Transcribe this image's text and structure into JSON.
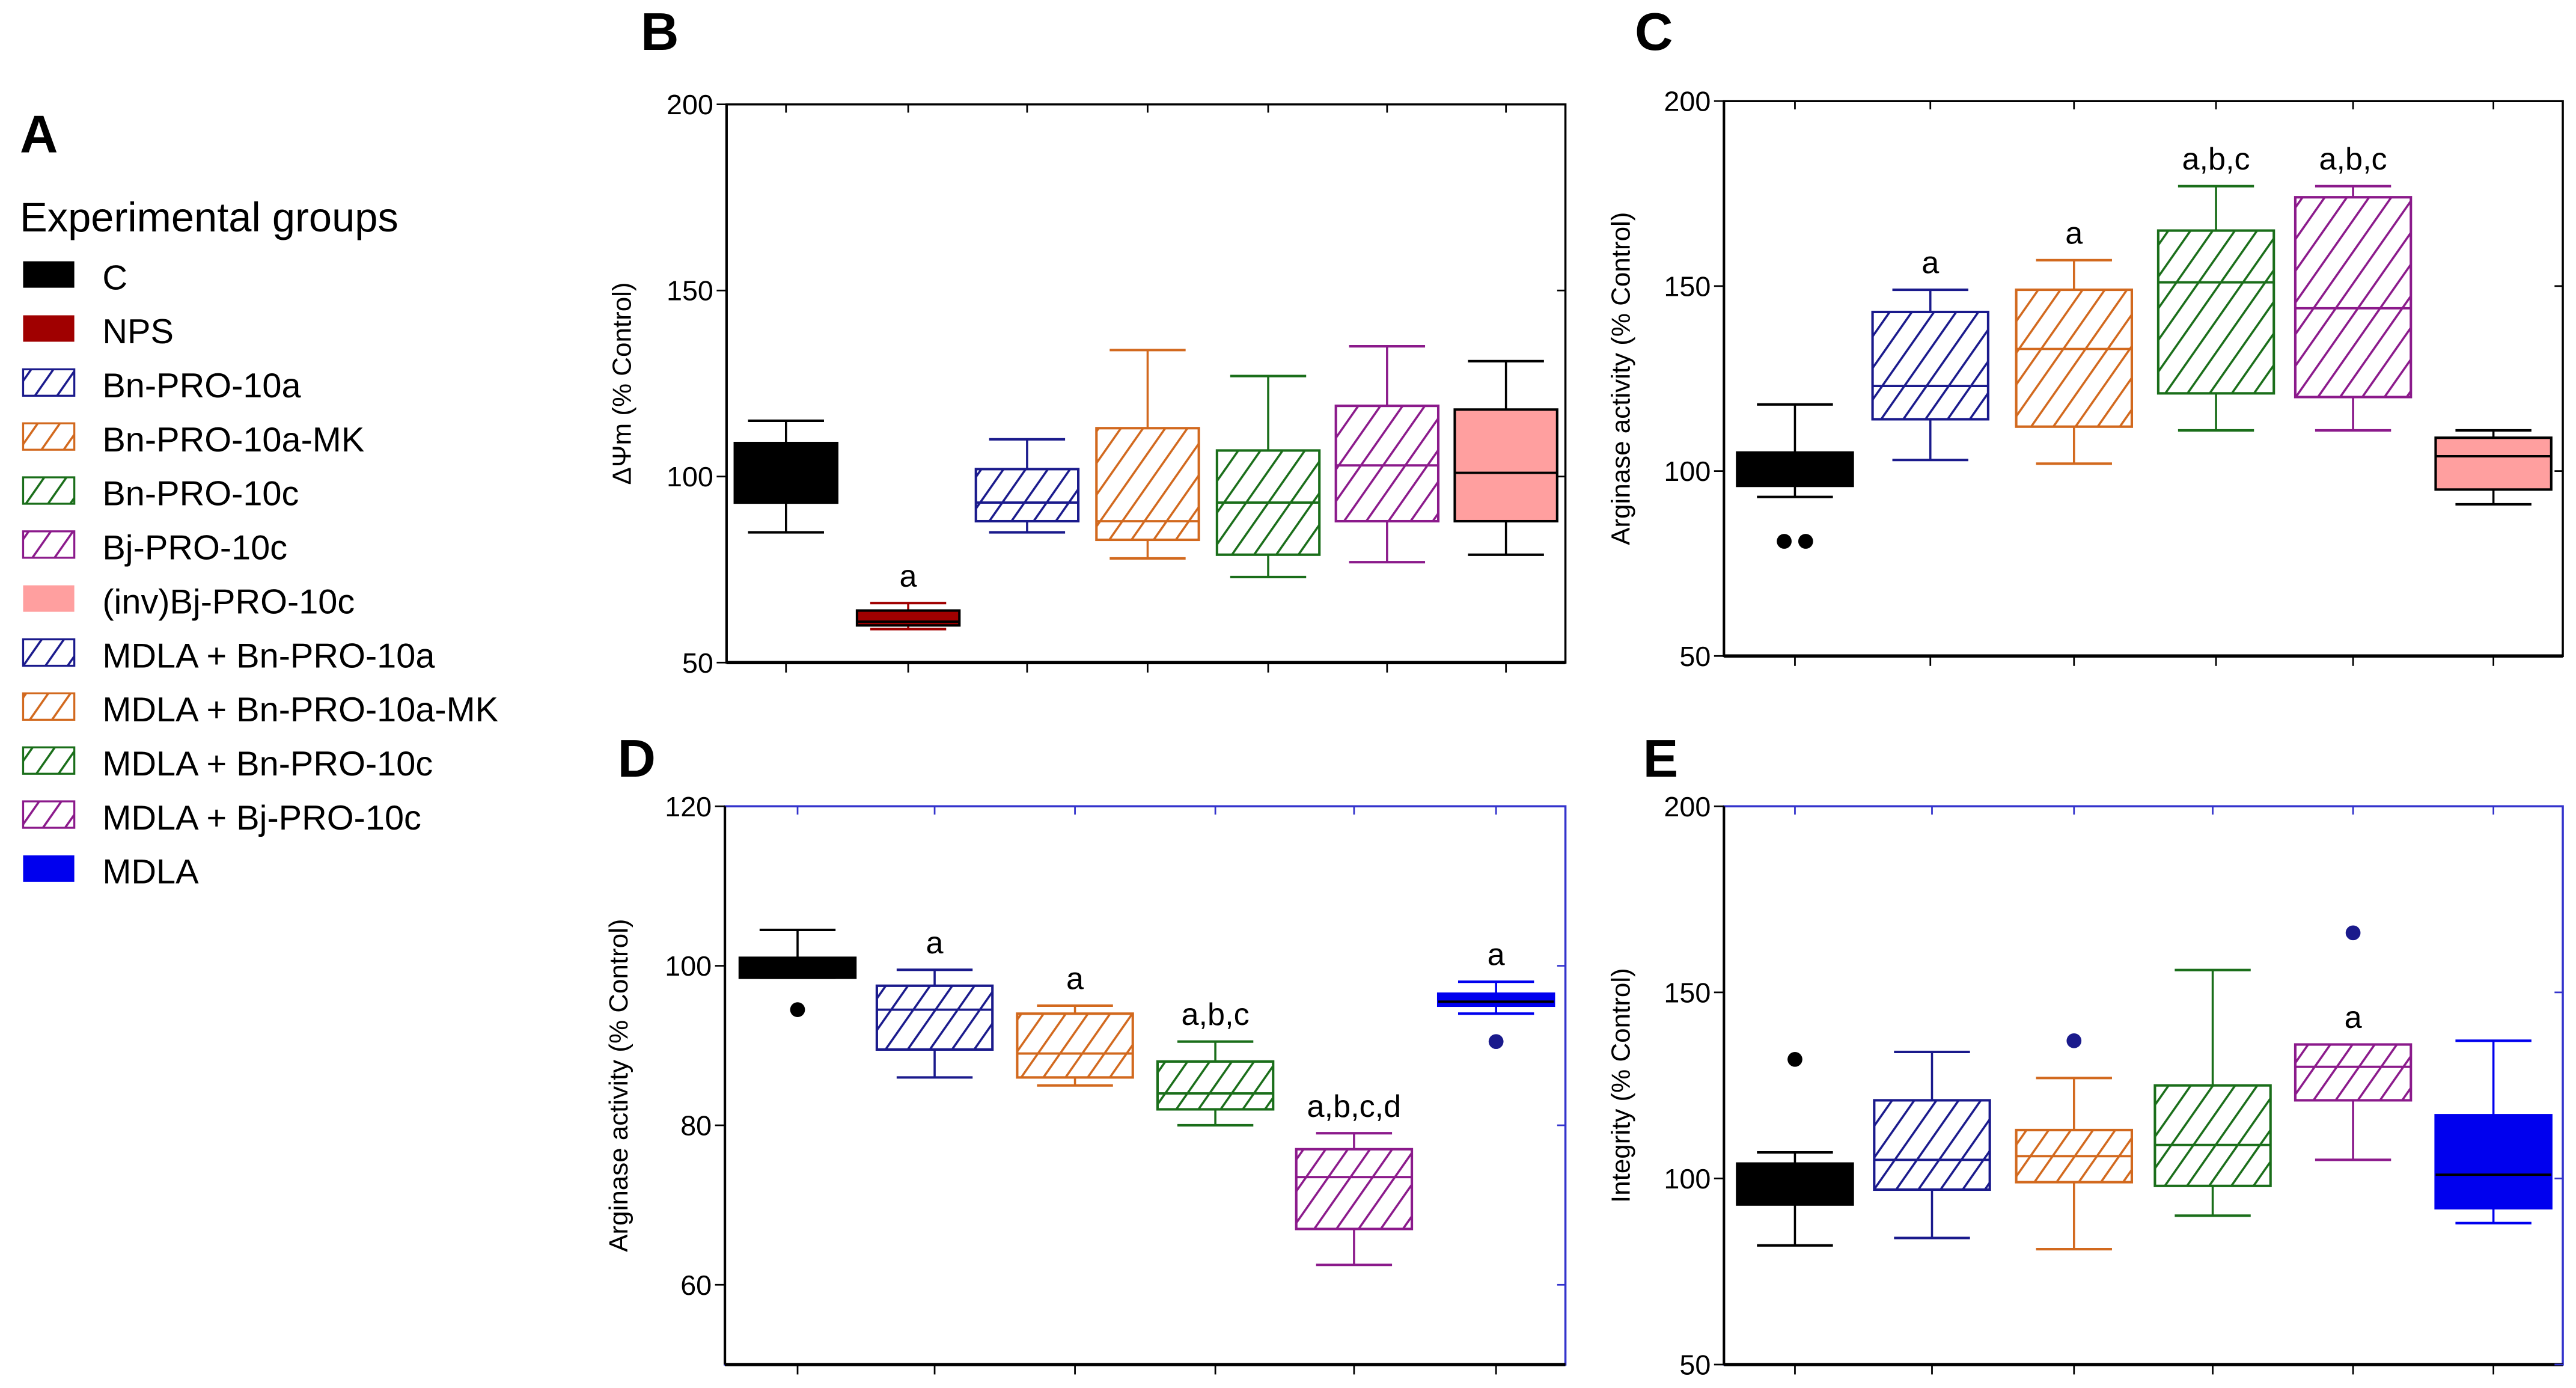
{
  "legend": {
    "panel_letter": "A",
    "title": "Experimental groups",
    "items": [
      {
        "label": "C",
        "color": "#000000",
        "style": "solid"
      },
      {
        "label": "NPS",
        "color": "#a00000",
        "style": "solid"
      },
      {
        "label": "Bn-PRO-10a",
        "color": "#1a1a8c",
        "style": "hatch"
      },
      {
        "label": "Bn-PRO-10a-MK",
        "color": "#d2691e",
        "style": "hatch"
      },
      {
        "label": "Bn-PRO-10c",
        "color": "#1a6e1a",
        "style": "hatch"
      },
      {
        "label": "Bj-PRO-10c",
        "color": "#8b1a8b",
        "style": "hatch"
      },
      {
        "label": "(inv)Bj-PRO-10c",
        "color": "#ff9f9f",
        "style": "solid"
      },
      {
        "label": "MDLA + Bn-PRO-10a",
        "color": "#1a1a8c",
        "style": "hatch"
      },
      {
        "label": "MDLA + Bn-PRO-10a-MK",
        "color": "#d2691e",
        "style": "hatch"
      },
      {
        "label": "MDLA + Bn-PRO-10c",
        "color": "#1a6e1a",
        "style": "hatch"
      },
      {
        "label": "MDLA + Bj-PRO-10c",
        "color": "#8b1a8b",
        "style": "hatch"
      },
      {
        "label": "MDLA",
        "color": "#0000ee",
        "style": "solid"
      }
    ]
  },
  "chart_data": [
    {
      "panel": "B",
      "type": "box",
      "ylabel": "ΔΨm (% Control)",
      "ylim": [
        50,
        200
      ],
      "yticks": [
        50,
        100,
        150,
        200
      ],
      "frame_color": "#000000",
      "groups": [
        {
          "name": "C",
          "min": 85,
          "q1": 93,
          "median": 93,
          "q3": 109,
          "max": 115,
          "outliers": [],
          "annotation": ""
        },
        {
          "name": "NPS",
          "min": 59,
          "q1": 60,
          "median": 61,
          "q3": 64,
          "max": 66,
          "outliers": [],
          "annotation": "a"
        },
        {
          "name": "Bn-PRO-10a",
          "min": 85,
          "q1": 88,
          "median": 93,
          "q3": 102,
          "max": 110,
          "outliers": [],
          "annotation": ""
        },
        {
          "name": "Bn-PRO-10a-MK",
          "min": 78,
          "q1": 83,
          "median": 88,
          "q3": 113,
          "max": 134,
          "outliers": [],
          "annotation": ""
        },
        {
          "name": "Bn-PRO-10c",
          "min": 73,
          "q1": 79,
          "median": 93,
          "q3": 107,
          "max": 127,
          "outliers": [],
          "annotation": ""
        },
        {
          "name": "Bj-PRO-10c",
          "min": 77,
          "q1": 88,
          "median": 103,
          "q3": 119,
          "max": 135,
          "outliers": [],
          "annotation": ""
        },
        {
          "name": "(inv)Bj-PRO-10c",
          "min": 79,
          "q1": 88,
          "median": 101,
          "q3": 118,
          "max": 131,
          "outliers": [],
          "annotation": ""
        }
      ]
    },
    {
      "panel": "C",
      "type": "box",
      "ylabel": "Arginase activity (% Control)",
      "ylim": [
        50,
        200
      ],
      "yticks": [
        50,
        100,
        150,
        200
      ],
      "frame_color": "#000000",
      "groups": [
        {
          "name": "C",
          "min": 93,
          "q1": 96,
          "median": 100,
          "q3": 105,
          "max": 118,
          "outliers": [
            81,
            81
          ],
          "annotation": ""
        },
        {
          "name": "Bn-PRO-10a",
          "min": 103,
          "q1": 114,
          "median": 123,
          "q3": 143,
          "max": 149,
          "outliers": [],
          "annotation": "a"
        },
        {
          "name": "Bn-PRO-10a-MK",
          "min": 102,
          "q1": 112,
          "median": 133,
          "q3": 149,
          "max": 157,
          "outliers": [],
          "annotation": "a"
        },
        {
          "name": "Bn-PRO-10c",
          "min": 111,
          "q1": 121,
          "median": 151,
          "q3": 165,
          "max": 177,
          "outliers": [],
          "annotation": "a,b,c"
        },
        {
          "name": "Bj-PRO-10c",
          "min": 111,
          "q1": 120,
          "median": 144,
          "q3": 174,
          "max": 177,
          "outliers": [],
          "annotation": "a,b,c"
        },
        {
          "name": "(inv)Bj-PRO-10c",
          "min": 91,
          "q1": 95,
          "median": 104,
          "q3": 109,
          "max": 111,
          "outliers": [],
          "annotation": ""
        }
      ]
    },
    {
      "panel": "D",
      "type": "box",
      "ylabel": "Arginase activity (% Control)",
      "ylim": [
        50,
        120
      ],
      "yticks": [
        60,
        80,
        100,
        120
      ],
      "frame_color": "#3333cc",
      "groups": [
        {
          "name": "C",
          "min": 98.5,
          "q1": 98.5,
          "median": 100,
          "q3": 101,
          "max": 104.5,
          "outliers": [
            94.5
          ],
          "annotation": ""
        },
        {
          "name": "MDLA + Bn-PRO-10a",
          "min": 86,
          "q1": 89.5,
          "median": 94.5,
          "q3": 97.5,
          "max": 99.5,
          "outliers": [],
          "annotation": "a"
        },
        {
          "name": "MDLA + Bn-PRO-10a-MK",
          "min": 85,
          "q1": 86,
          "median": 89,
          "q3": 94,
          "max": 95,
          "outliers": [],
          "annotation": "a"
        },
        {
          "name": "MDLA + Bn-PRO-10c",
          "min": 80,
          "q1": 82,
          "median": 84,
          "q3": 88,
          "max": 90.5,
          "outliers": [],
          "annotation": "a,b,c"
        },
        {
          "name": "MDLA + Bj-PRO-10c",
          "min": 62.5,
          "q1": 67,
          "median": 73.5,
          "q3": 77,
          "max": 79,
          "outliers": [],
          "annotation": "a,b,c,d"
        },
        {
          "name": "MDLA",
          "min": 94,
          "q1": 95,
          "median": 95.5,
          "q3": 96.5,
          "max": 98,
          "outliers": [
            90.5
          ],
          "annotation": "a"
        }
      ]
    },
    {
      "panel": "E",
      "type": "box",
      "ylabel": "Integrity (% Control)",
      "ylim": [
        50,
        200
      ],
      "yticks": [
        50,
        100,
        150,
        200
      ],
      "frame_color": "#3333cc",
      "groups": [
        {
          "name": "C",
          "min": 82,
          "q1": 93,
          "median": 100,
          "q3": 104,
          "max": 107,
          "outliers": [
            132
          ],
          "annotation": ""
        },
        {
          "name": "MDLA + Bn-PRO-10a",
          "min": 84,
          "q1": 97,
          "median": 105,
          "q3": 121,
          "max": 134,
          "outliers": [],
          "annotation": ""
        },
        {
          "name": "MDLA + Bn-PRO-10a-MK",
          "min": 81,
          "q1": 99,
          "median": 106,
          "q3": 113,
          "max": 127,
          "outliers": [
            137
          ],
          "annotation": ""
        },
        {
          "name": "MDLA + Bn-PRO-10c",
          "min": 90,
          "q1": 98,
          "median": 109,
          "q3": 125,
          "max": 156,
          "outliers": [],
          "annotation": ""
        },
        {
          "name": "MDLA + Bj-PRO-10c",
          "min": 105,
          "q1": 121,
          "median": 130,
          "q3": 136,
          "max": 136,
          "outliers": [
            166
          ],
          "annotation": "a"
        },
        {
          "name": "MDLA",
          "min": 88,
          "q1": 92,
          "median": 101,
          "q3": 117,
          "max": 137,
          "outliers": [],
          "annotation": ""
        }
      ]
    }
  ],
  "colors": {
    "C": "#000000",
    "NPS": "#a00000",
    "Bn-PRO-10a": "#1a1a8c",
    "Bn-PRO-10a-MK": "#d2691e",
    "Bn-PRO-10c": "#1a6e1a",
    "Bj-PRO-10c": "#8b1a8b",
    "(inv)Bj-PRO-10c": "#ff9f9f",
    "MDLA": "#0000ee"
  }
}
